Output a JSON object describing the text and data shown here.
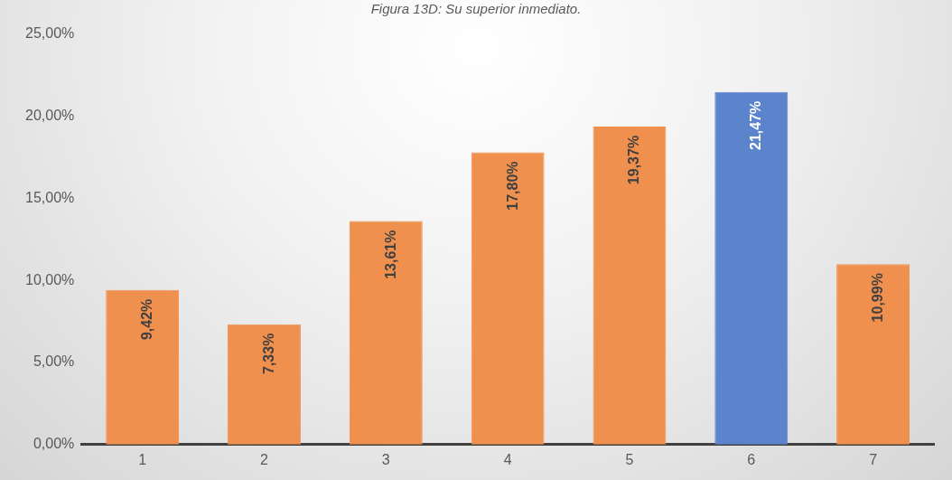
{
  "chart_data": {
    "type": "bar",
    "title": "Figura 13D: Su superior inmediato.",
    "categories": [
      "1",
      "2",
      "3",
      "4",
      "5",
      "6",
      "7"
    ],
    "values": [
      9.42,
      7.33,
      13.61,
      17.8,
      19.37,
      21.47,
      10.99
    ],
    "colors": [
      "#f0904f",
      "#f0904f",
      "#f0904f",
      "#f0904f",
      "#f0904f",
      "#5b84cc",
      "#f0904f"
    ],
    "value_labels": [
      "9,42%",
      "7,33%",
      "13,61%",
      "17,80%",
      "19,37%",
      "21,47%",
      "10,99%"
    ],
    "ylim": [
      0,
      25
    ],
    "yticks": [
      {
        "value": 0,
        "label": "0,00%"
      },
      {
        "value": 5,
        "label": "5,00%"
      },
      {
        "value": 10,
        "label": "10,00%"
      },
      {
        "value": 15,
        "label": "15,00%"
      },
      {
        "value": 20,
        "label": "20,00%"
      },
      {
        "value": 25,
        "label": "25,00%"
      }
    ],
    "grid": false,
    "legend": false
  }
}
